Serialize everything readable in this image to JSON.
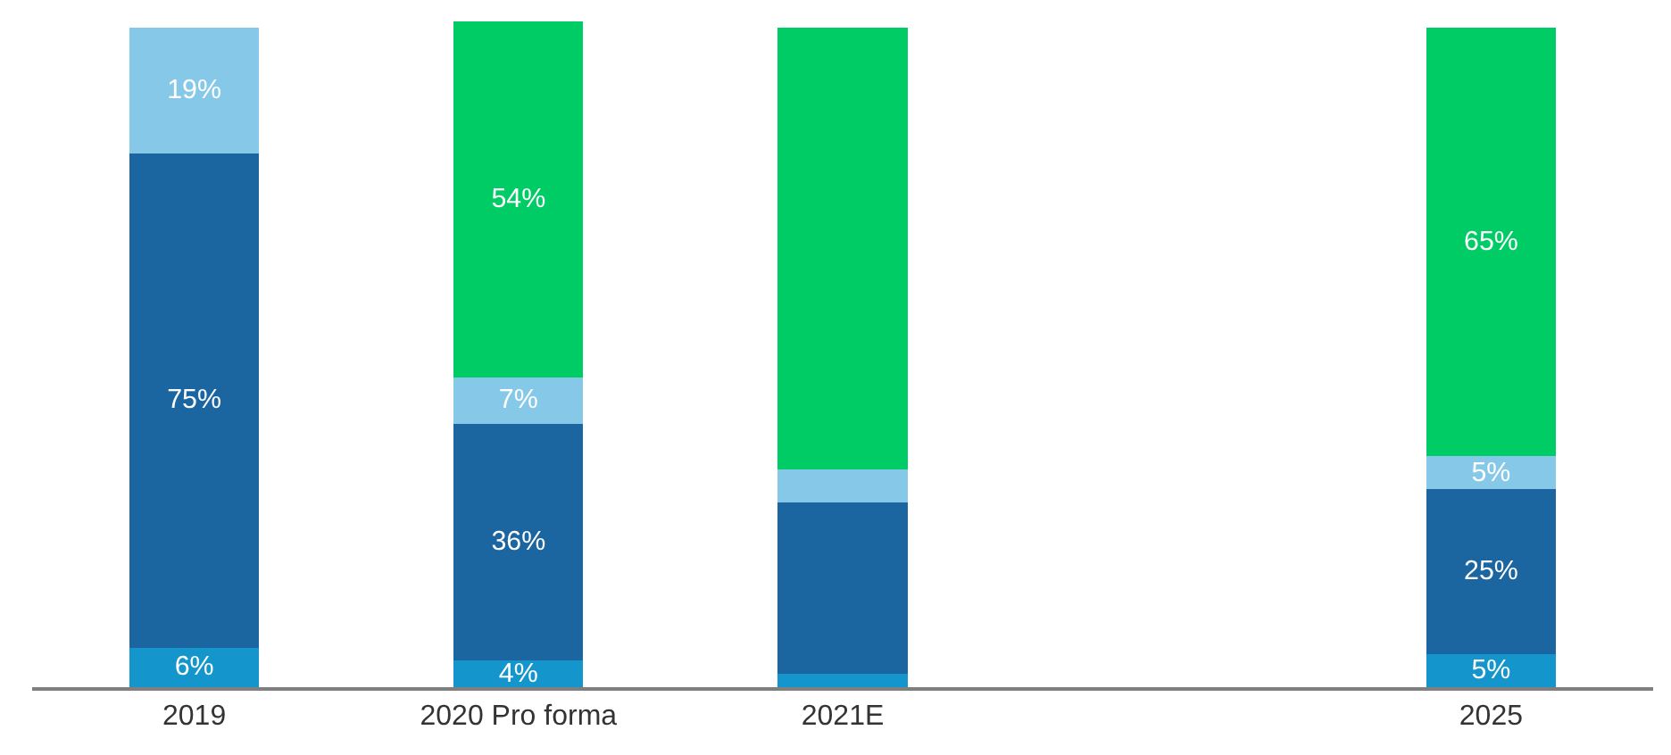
{
  "chart_data": {
    "type": "bar",
    "stacked": true,
    "categories": [
      "2019",
      "2020 Pro forma",
      "2021E",
      null,
      "2025"
    ],
    "series": [
      {
        "color": "#1496cc",
        "values": [
          6,
          4,
          2,
          null,
          5
        ],
        "value_labels": [
          "6%",
          "4%",
          null,
          null,
          "5%"
        ]
      },
      {
        "color": "#1b65a0",
        "values": [
          75,
          36,
          26,
          null,
          25
        ],
        "value_labels": [
          "75%",
          "36%",
          null,
          null,
          "25%"
        ]
      },
      {
        "color": "#85c8e8",
        "values": [
          19,
          7,
          5,
          null,
          5
        ],
        "value_labels": [
          "19%",
          "7%",
          null,
          null,
          "5%"
        ]
      },
      {
        "color": "#00cc66",
        "values": [
          null,
          54,
          67,
          null,
          65
        ],
        "value_labels": [
          null,
          "54%",
          null,
          null,
          "65%"
        ]
      }
    ],
    "ylim": [
      0,
      101
    ],
    "tick_labels": "x",
    "grid": false
  }
}
